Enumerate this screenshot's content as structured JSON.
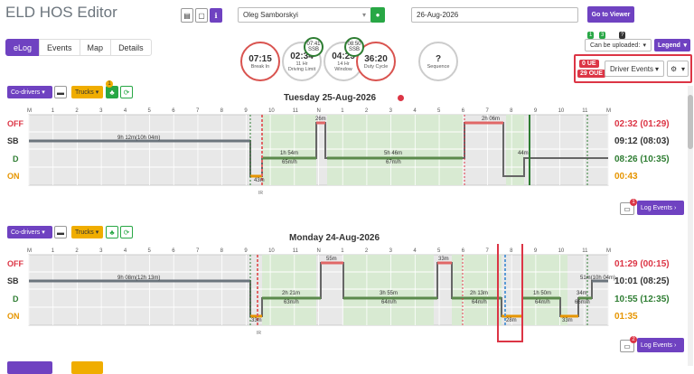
{
  "app": {
    "title": "ELD HOS Editor"
  },
  "header": {
    "driver": "Oleg Samborskyi",
    "date": "26-Aug-2026",
    "go_viewer": "Go to Viewer"
  },
  "tabs": [
    "eLog",
    "Events",
    "Map",
    "Details"
  ],
  "gauges": [
    {
      "value": "07:15",
      "label": "Break In",
      "color": "#d9534f"
    },
    {
      "value": "02:34",
      "label": "11 Hr\nDriving Limit",
      "color": "#aaaaaa"
    },
    {
      "value": "04:25",
      "label": "14 Hr\nWindow",
      "color": "#aaaaaa"
    },
    {
      "value": "36:20",
      "label": "Duty Cycle",
      "color": "#d9534f"
    },
    {
      "value": "?",
      "label": "Sequence",
      "color": "#cccccc"
    }
  ],
  "mini_gauges": [
    {
      "value": "07:41",
      "label": "SSB"
    },
    {
      "value": "08:50",
      "label": "SSB"
    }
  ],
  "right_toolbar": {
    "counts": [
      "1",
      "3",
      "?"
    ],
    "upload_select": "Can be uploaded:",
    "legend": "Legend",
    "ue": "0 UE",
    "oue": "29 OUE",
    "driver_events": "Driver Events"
  },
  "hour_labels": [
    "M",
    "1",
    "2",
    "3",
    "4",
    "5",
    "6",
    "7",
    "8",
    "9",
    "10",
    "11",
    "N",
    "1",
    "2",
    "3",
    "4",
    "5",
    "6",
    "7",
    "8",
    "9",
    "10",
    "11",
    "M"
  ],
  "status_labels": [
    "OFF",
    "SB",
    "D",
    "ON"
  ],
  "days": [
    {
      "codrivers": "Co-drivers",
      "trucks": "Trucks",
      "truck_badge": "1",
      "title": "Tuesday 25-Aug-2026",
      "totals": [
        "02:32 (01:29)",
        "09:12 (08:03)",
        "08:26 (10:35)",
        "00:43"
      ],
      "labels": {
        "sb1": "9h 12m(10h 04m)",
        "d1": "1h 54m",
        "d1s": "65m/h",
        "d2": "5h 46m",
        "d2s": "67m/h",
        "d3": "44m",
        "off1": "26m",
        "off2": "2h 06m",
        "on1": "43m",
        "ir": "IR"
      },
      "log_events": "Log Events",
      "log_badge": "1"
    },
    {
      "codrivers": "Co-drivers",
      "trucks": "Trucks",
      "title": "Monday 24-Aug-2026",
      "totals": [
        "01:29 (00:15)",
        "10:01 (08:25)",
        "10:55 (12:35)",
        "01:35"
      ],
      "labels": {
        "sb1": "9h 08m(12h 13m)",
        "sb2": "51m(10h 04m)",
        "d1": "2h 21m",
        "d1s": "63m/h",
        "d2": "3h 55m",
        "d2s": "64m/h",
        "d3": "2h 13m",
        "d3s": "64m/h",
        "d4": "1h 50m",
        "d4s": "64m/h",
        "d5": "34m",
        "d5s": "66m/h",
        "off1": "55m",
        "off2": "33m",
        "on1": "33m",
        "on2": "28m",
        "on3": "33m",
        "ir": "IR"
      },
      "log_events": "Log Events",
      "log_badge": "2"
    }
  ]
}
